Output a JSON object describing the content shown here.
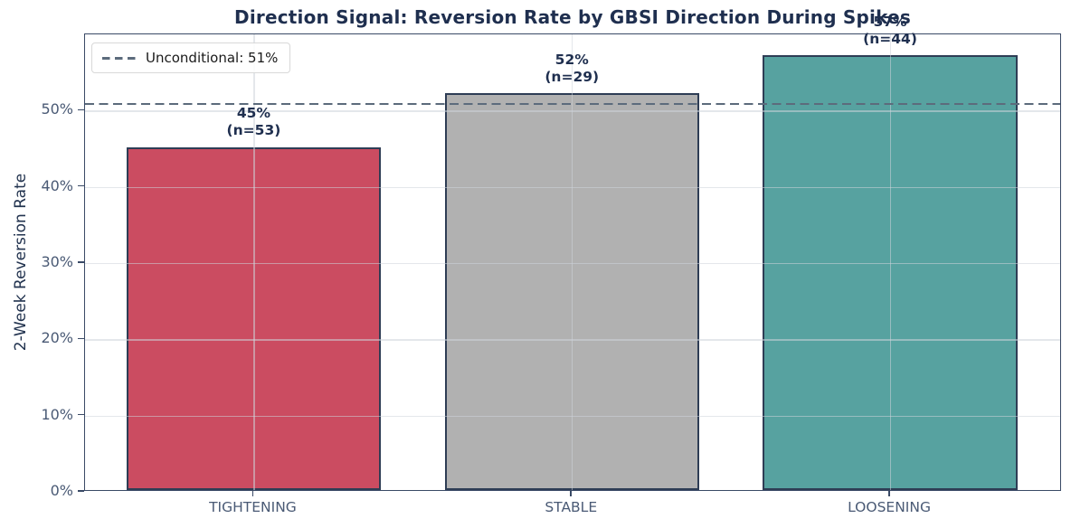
{
  "chart_data": {
    "type": "bar",
    "title": "Direction Signal: Reversion Rate by GBSI Direction During Spikes",
    "ylabel": "2-Week Reversion Rate",
    "xlabel": "",
    "categories": [
      "TIGHTENING",
      "STABLE",
      "LOOSENING"
    ],
    "values": [
      45,
      52,
      57
    ],
    "sample_sizes": [
      53,
      29,
      44
    ],
    "bar_labels": [
      {
        "pct": "45%",
        "n": "(n=53)"
      },
      {
        "pct": "52%",
        "n": "(n=29)"
      },
      {
        "pct": "57%",
        "n": "(n=44)"
      }
    ],
    "bar_colors": [
      "#cb4c61",
      "#b1b1b1",
      "#57a2a0"
    ],
    "bar_edge_color": "#2e3d55",
    "ylim": [
      0,
      60
    ],
    "yticks": [
      0,
      10,
      20,
      30,
      40,
      50
    ],
    "ytick_labels": [
      "0%",
      "10%",
      "20%",
      "30%",
      "40%",
      "50%"
    ],
    "grid": true,
    "reference_line": {
      "value": 51,
      "label": "Unconditional: 51%"
    },
    "legend": {
      "position": "upper-left"
    }
  },
  "colors": {
    "background": "#ffffff",
    "title": "#1f2f4f",
    "tick_label": "#4a5a75",
    "axis_label": "#22334f",
    "bar_value_label": "#1f2f4f",
    "spine": "#3a4a66",
    "grid": "#e2e4e8",
    "reference_line": "#5c6b7c",
    "legend_border": "#d8d8d8",
    "legend_text": "#1a1a1a"
  }
}
